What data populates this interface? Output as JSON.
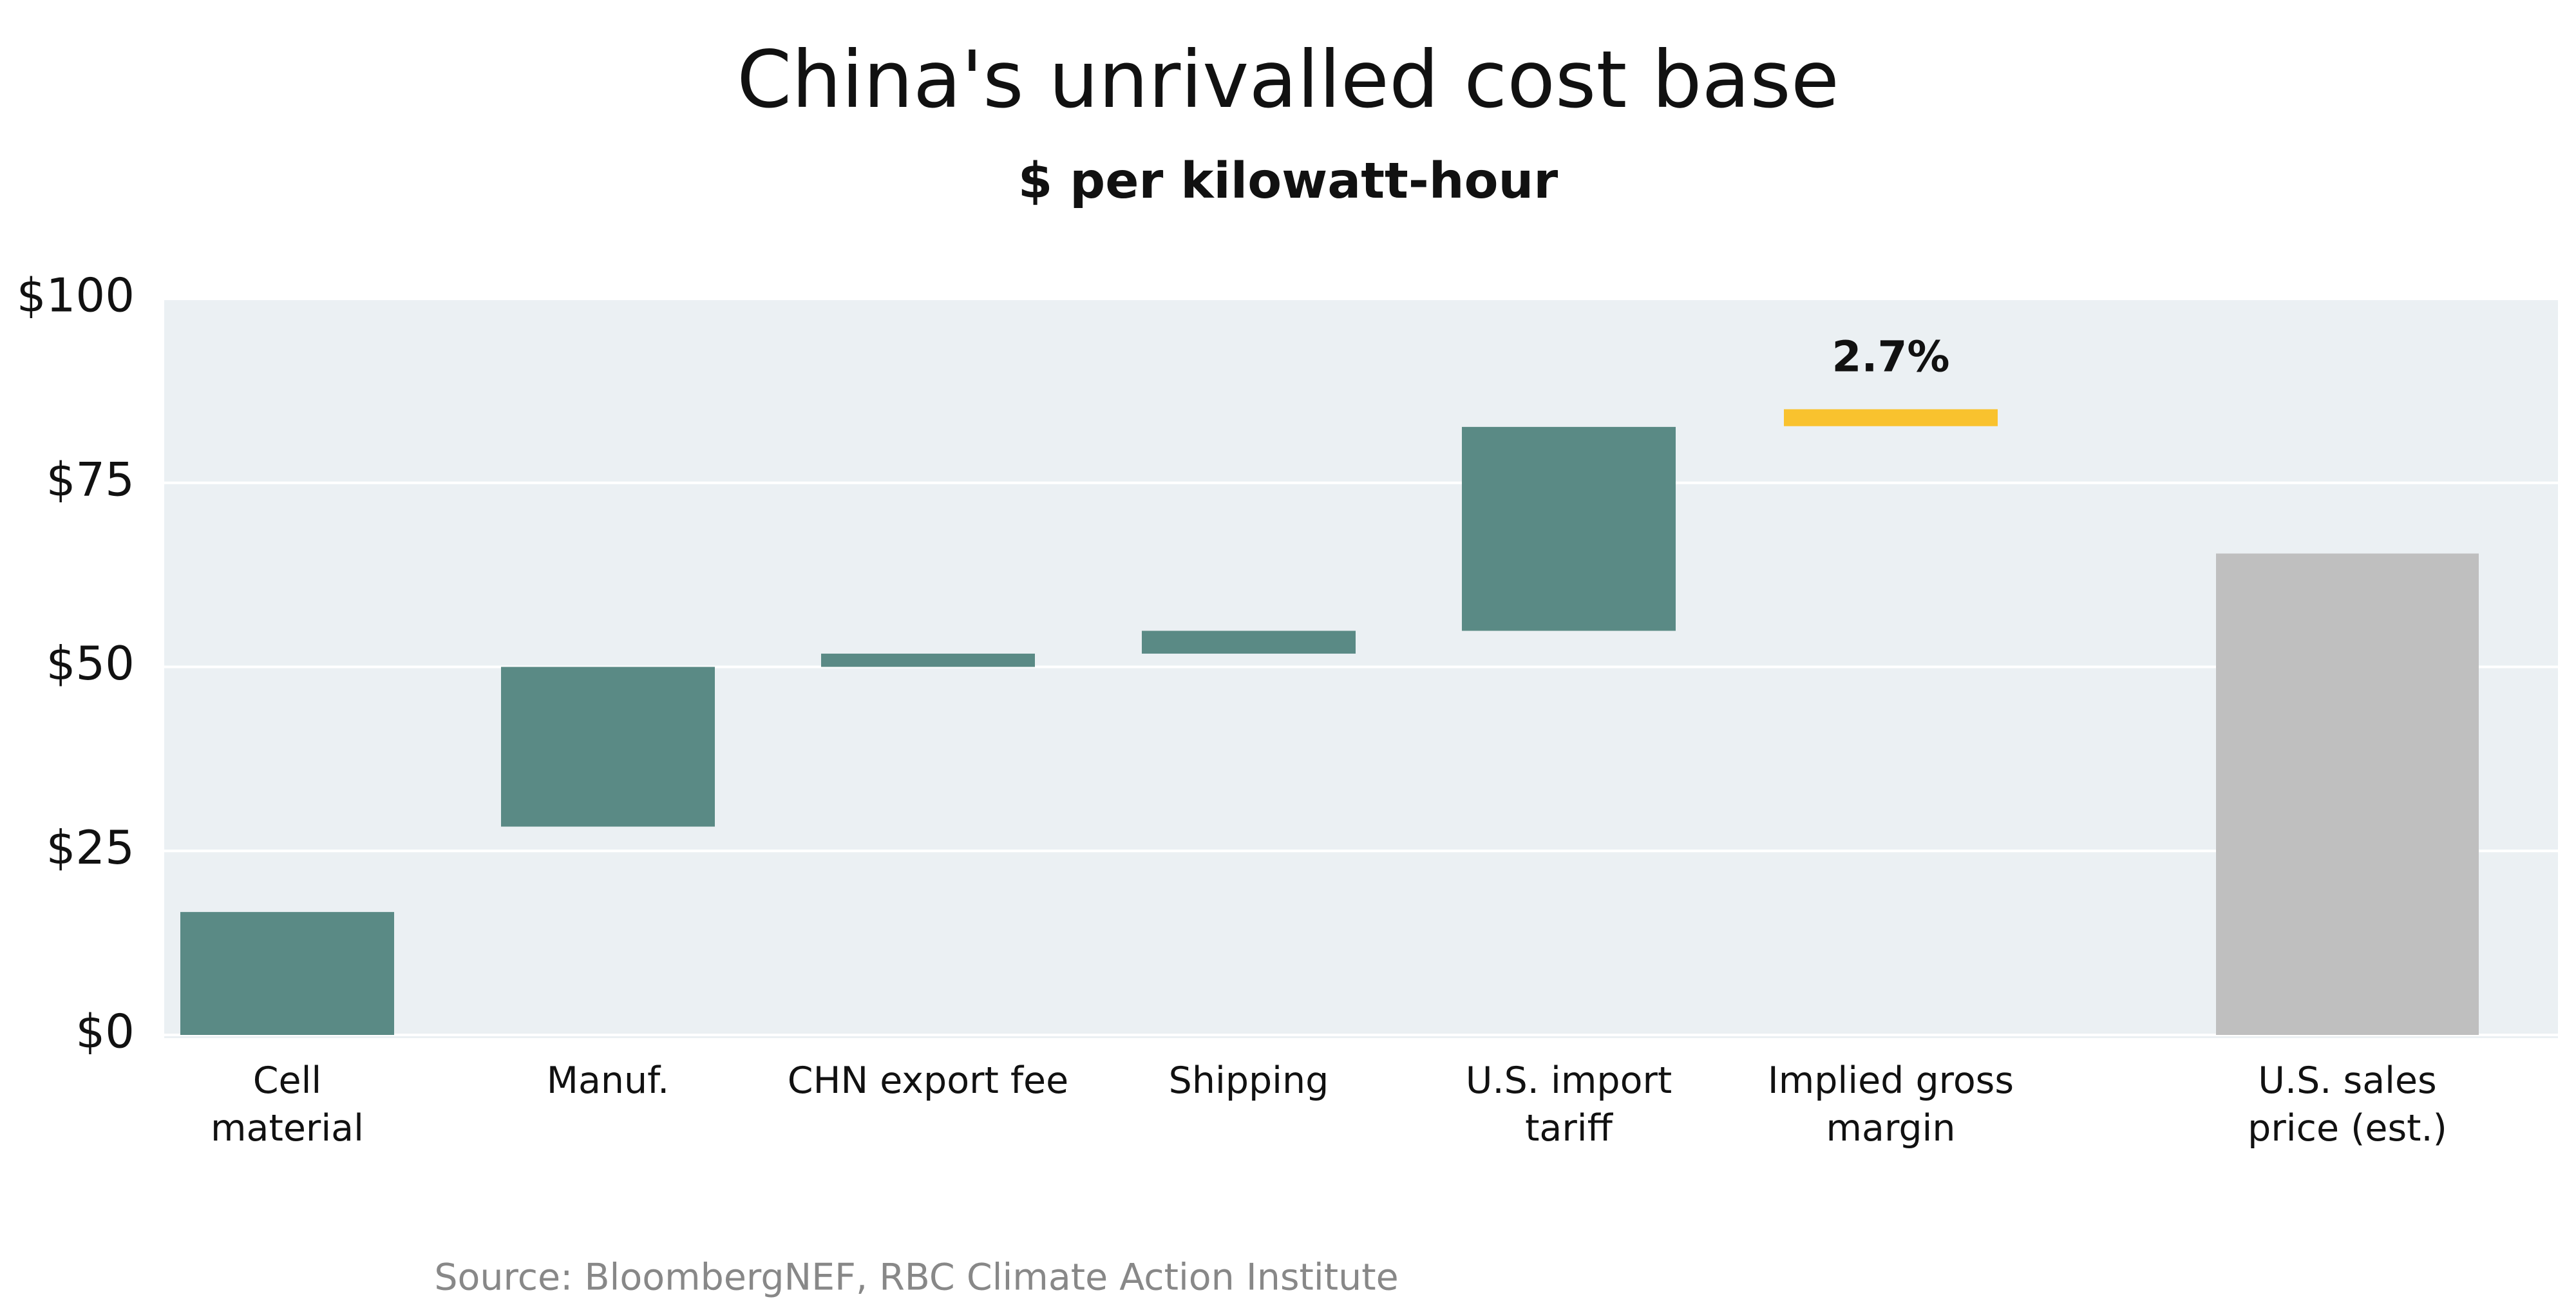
{
  "chart_data": {
    "type": "range_bar",
    "title": "China's unrivalled cost base",
    "subtitle": "$ per kilowatt-hour",
    "source": "Source: BloombergNEF, RBC Climate Action Institute",
    "categories": [
      [
        "Cell",
        "material"
      ],
      [
        "Manuf."
      ],
      [
        "CHN export fee"
      ],
      [
        "Shipping"
      ],
      [
        "U.S. import",
        "tariff"
      ],
      [
        "Implied gross",
        "margin"
      ],
      [
        "U.S. sales",
        "price (est.)"
      ]
    ],
    "low": [
      0,
      28.3,
      50,
      51.8,
      54.9,
      82.7,
      0
    ],
    "high": [
      16.7,
      50,
      51.8,
      54.9,
      82.6,
      85,
      65.4
    ],
    "colors": [
      "#5a8a85",
      "#5a8a85",
      "#5a8a85",
      "#5a8a85",
      "#5a8a85",
      "#f9c22e",
      "#bfbfbf"
    ],
    "annotations": [
      {
        "text": "2.7%",
        "category": 5
      }
    ],
    "ylim": [
      0,
      100
    ],
    "yticks": [
      {
        "value": 0,
        "label": "$0"
      },
      {
        "value": 25,
        "label": "$25"
      },
      {
        "value": 50,
        "label": "$50"
      },
      {
        "value": 75,
        "label": "$75"
      },
      {
        "value": 100,
        "label": "$100"
      }
    ],
    "grid": true
  }
}
